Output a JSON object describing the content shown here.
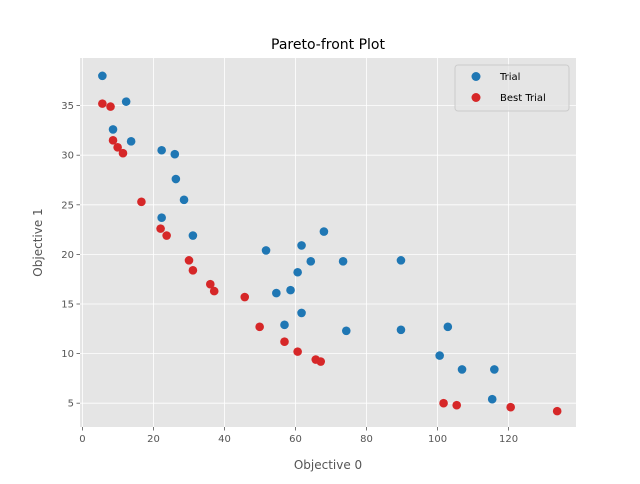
{
  "chart_data": {
    "type": "scatter",
    "title": "Pareto-front Plot",
    "xlabel": "Objective 0",
    "ylabel": "Objective 1",
    "xlim": [
      -0.7,
      139
    ],
    "ylim": [
      2.6,
      39.8
    ],
    "xticks": [
      0,
      20,
      40,
      60,
      80,
      100,
      120
    ],
    "yticks": [
      5,
      10,
      15,
      20,
      25,
      30,
      35
    ],
    "grid": true,
    "legend_position": "top-right",
    "series": [
      {
        "name": "Trial",
        "color": "#1f77b4",
        "points": [
          [
            5.6,
            38.0
          ],
          [
            12.3,
            35.4
          ],
          [
            8.6,
            32.6
          ],
          [
            13.7,
            31.4
          ],
          [
            22.3,
            30.5
          ],
          [
            26.0,
            30.1
          ],
          [
            26.3,
            27.6
          ],
          [
            28.6,
            25.5
          ],
          [
            22.3,
            23.7
          ],
          [
            31.1,
            21.9
          ],
          [
            51.7,
            20.4
          ],
          [
            61.7,
            20.9
          ],
          [
            68.0,
            22.3
          ],
          [
            64.3,
            19.3
          ],
          [
            73.4,
            19.3
          ],
          [
            89.7,
            19.4
          ],
          [
            60.6,
            18.2
          ],
          [
            58.6,
            16.4
          ],
          [
            54.6,
            16.1
          ],
          [
            61.7,
            14.1
          ],
          [
            56.9,
            12.9
          ],
          [
            74.3,
            12.3
          ],
          [
            89.7,
            12.4
          ],
          [
            102.9,
            12.7
          ],
          [
            100.6,
            9.8
          ],
          [
            106.9,
            8.4
          ],
          [
            116.0,
            8.4
          ],
          [
            115.4,
            5.4
          ]
        ]
      },
      {
        "name": "Best Trial",
        "color": "#d62728",
        "points": [
          [
            5.6,
            35.2
          ],
          [
            7.9,
            34.9
          ],
          [
            8.6,
            31.5
          ],
          [
            9.9,
            30.8
          ],
          [
            11.4,
            30.2
          ],
          [
            16.6,
            25.3
          ],
          [
            22.0,
            22.6
          ],
          [
            23.7,
            21.9
          ],
          [
            30.0,
            19.4
          ],
          [
            31.1,
            18.4
          ],
          [
            36.0,
            17.0
          ],
          [
            37.1,
            16.3
          ],
          [
            45.7,
            15.7
          ],
          [
            49.9,
            12.7
          ],
          [
            56.9,
            11.2
          ],
          [
            60.6,
            10.2
          ],
          [
            65.7,
            9.4
          ],
          [
            67.1,
            9.2
          ],
          [
            101.7,
            5.0
          ],
          [
            105.4,
            4.8
          ],
          [
            120.6,
            4.6
          ],
          [
            133.7,
            4.2
          ]
        ]
      }
    ]
  }
}
